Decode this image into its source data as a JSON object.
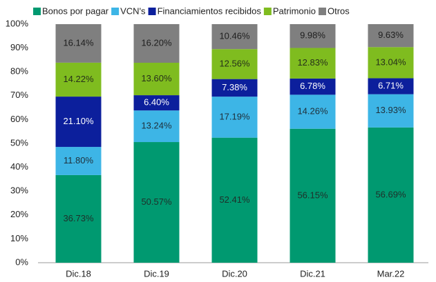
{
  "chart_data": {
    "type": "stacked_bar",
    "categories": [
      "Dic.18",
      "Dic.19",
      "Dic.20",
      "Dic.21",
      "Mar.22"
    ],
    "series": [
      {
        "name": "Bonos por pagar",
        "color": "#009970",
        "label_color": "#1f2f2a",
        "values": [
          36.73,
          50.57,
          52.41,
          56.15,
          56.69
        ],
        "value_labels": [
          "36.73%",
          "50.57%",
          "52.41%",
          "56.15%",
          "56.69%"
        ]
      },
      {
        "name": "VCN's",
        "color": "#3db5e6",
        "label_color": "#1f2f3a",
        "values": [
          11.8,
          13.24,
          17.19,
          14.26,
          13.93
        ],
        "value_labels": [
          "11.80%",
          "13.24%",
          "17.19%",
          "14.26%",
          "13.93%"
        ]
      },
      {
        "name": "Financiamientos recibidos",
        "color": "#0c1f9c",
        "label_color": "#ffffff",
        "values": [
          21.1,
          6.4,
          7.38,
          6.78,
          6.71
        ],
        "value_labels": [
          "21.10%",
          "6.40%",
          "7.38%",
          "6.78%",
          "6.71%"
        ]
      },
      {
        "name": "Patrimonio",
        "color": "#7fbc1f",
        "label_color": "#26301a",
        "values": [
          14.22,
          13.6,
          12.56,
          12.83,
          13.04
        ],
        "value_labels": [
          "14.22%",
          "13.60%",
          "12.56%",
          "12.83%",
          "13.04%"
        ]
      },
      {
        "name": "Otros",
        "color": "#7f7f7f",
        "label_color": "#1e1e1e",
        "values": [
          16.14,
          16.2,
          10.46,
          9.98,
          9.63
        ],
        "value_labels": [
          "16.14%",
          "16.20%",
          "10.46%",
          "9.98%",
          "9.63%"
        ]
      }
    ],
    "ylim": [
      0,
      100
    ],
    "yticks": [
      {
        "value": 0,
        "label": "0%"
      },
      {
        "value": 10,
        "label": "10%"
      },
      {
        "value": 20,
        "label": "20%"
      },
      {
        "value": 30,
        "label": "30%"
      },
      {
        "value": 40,
        "label": "40%"
      },
      {
        "value": 50,
        "label": "50%"
      },
      {
        "value": 60,
        "label": "60%"
      },
      {
        "value": 70,
        "label": "70%"
      },
      {
        "value": 80,
        "label": "80%"
      },
      {
        "value": 90,
        "label": "90%"
      },
      {
        "value": 100,
        "label": "100%"
      }
    ],
    "grid": false,
    "legend": "top"
  }
}
